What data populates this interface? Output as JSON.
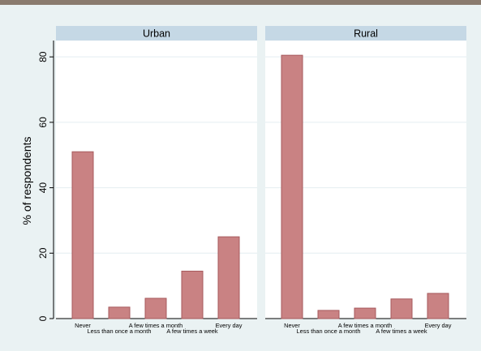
{
  "colors": {
    "background": "#eaf2f3",
    "panel": "#ffffff",
    "header": "#c5d8e5",
    "bar_fill": "#c98283",
    "bar_stroke": "#a75a5d",
    "grid": "#e4eef0",
    "topbar": "#8a7b6e"
  },
  "chart_data": {
    "type": "bar",
    "ylabel": "% of respondents",
    "ylim": [
      0,
      85
    ],
    "yticks": [
      0,
      20,
      40,
      60,
      80
    ],
    "grid": true,
    "categories": [
      "Never",
      "Less than once a month",
      "A few times a month",
      "A few times a week",
      "Every day"
    ],
    "panels": [
      {
        "title": "Urban",
        "values": [
          51,
          3.5,
          6.2,
          14.5,
          25
        ]
      },
      {
        "title": "Rural",
        "values": [
          80.5,
          2.5,
          3.2,
          6,
          7.7
        ]
      }
    ]
  }
}
